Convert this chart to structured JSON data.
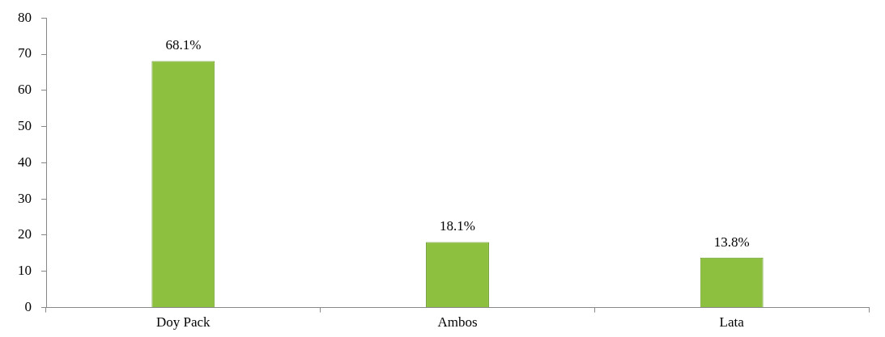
{
  "chart_data": {
    "type": "bar",
    "categories": [
      "Doy Pack",
      "Ambos",
      "Lata"
    ],
    "values": [
      68.1,
      18.1,
      13.8
    ],
    "color": "#8dc03f",
    "value_labels": [
      "68.1%",
      "18.1%",
      "13.8%"
    ],
    "ylim": [
      0,
      80
    ],
    "yticks": [
      0,
      10,
      20,
      30,
      40,
      50,
      60,
      70,
      80
    ],
    "grid": false,
    "legend": false
  }
}
